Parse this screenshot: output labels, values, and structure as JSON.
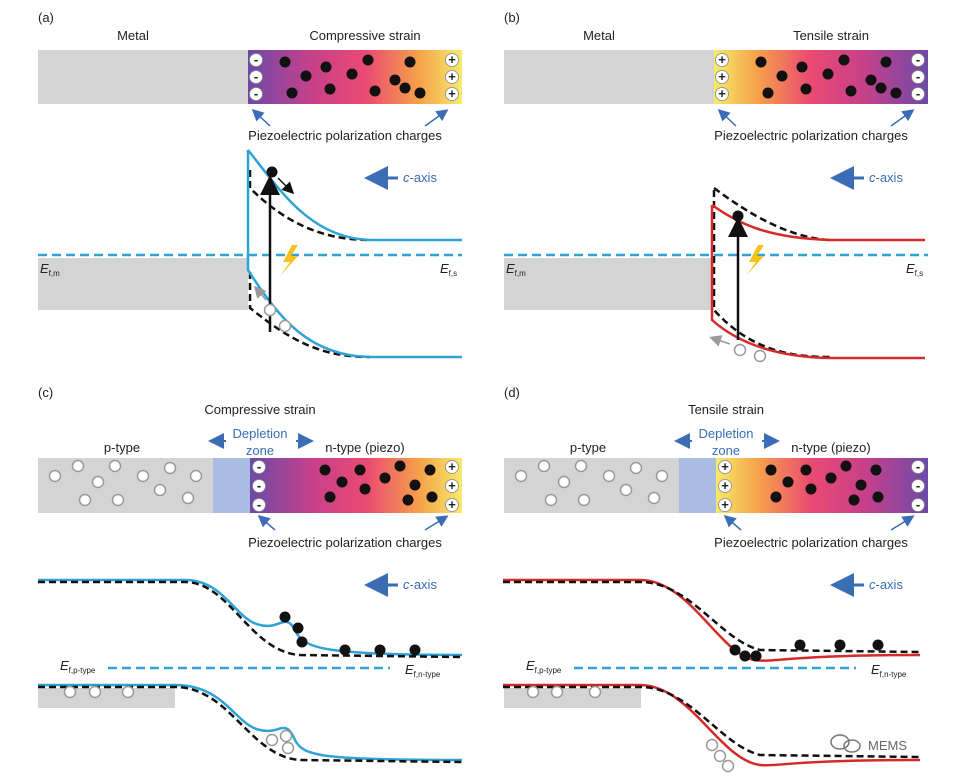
{
  "panels": [
    {
      "label": "(a)",
      "metal": "Metal",
      "strain": "Compressive strain",
      "charges_label": "Piezoelectric polarization charges",
      "axis": {
        "italic": "c",
        "rest": "-axis"
      },
      "fermi_metal": {
        "symbol": "E",
        "subscript": "f,m"
      },
      "fermi_semi": {
        "symbol": "E",
        "subscript": "f,s"
      }
    },
    {
      "label": "(b)",
      "metal": "Metal",
      "strain": "Tensile strain",
      "charges_label": "Piezoelectric polarization charges",
      "axis": {
        "italic": "c",
        "rest": "-axis"
      },
      "fermi_metal": {
        "symbol": "E",
        "subscript": "f,m"
      },
      "fermi_semi": {
        "symbol": "E",
        "subscript": "f,s"
      }
    },
    {
      "label": "(c)",
      "strain": "Compressive strain",
      "p_type": "p-type",
      "depletion": [
        "Depletion",
        "zone"
      ],
      "n_type": "n-type (piezo)",
      "charges_label": "Piezoelectric polarization charges",
      "axis": {
        "italic": "c",
        "rest": "-axis"
      },
      "fermi_p": {
        "symbol": "E",
        "subscript": "f,p-type"
      },
      "fermi_n": {
        "symbol": "E",
        "subscript": "f,n-type"
      }
    },
    {
      "label": "(d)",
      "strain": "Tensile strain",
      "p_type": "p-type",
      "depletion": [
        "Depletion",
        "zone"
      ],
      "n_type": "n-type (piezo)",
      "charges_label": "Piezoelectric polarization charges",
      "axis": {
        "italic": "c",
        "rest": "-axis"
      },
      "fermi_p": {
        "symbol": "E",
        "subscript": "f,p-type"
      },
      "fermi_n": {
        "symbol": "E",
        "subscript": "f,n-type"
      }
    }
  ],
  "charge_signs": {
    "positive": "+",
    "negative": "-"
  },
  "watermark": "MEMS"
}
